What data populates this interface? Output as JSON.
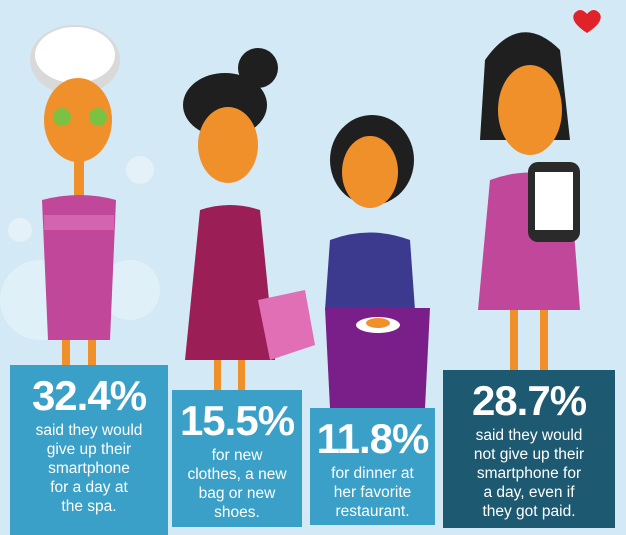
{
  "panels": [
    {
      "stat": "32.4%",
      "lines": [
        "said they would",
        "give up their",
        "smartphone",
        "for a day at",
        "the spa."
      ]
    },
    {
      "stat": "15.5%",
      "lines": [
        "for new",
        "clothes, a new",
        "bag or new",
        "shoes."
      ]
    },
    {
      "stat": "11.8%",
      "lines": [
        "for dinner at",
        "her favorite",
        "restaurant."
      ]
    },
    {
      "stat": "28.7%",
      "lines": [
        "said they would",
        "not give up their",
        "smartphone for",
        "a day, even if",
        "they got paid."
      ]
    }
  ]
}
